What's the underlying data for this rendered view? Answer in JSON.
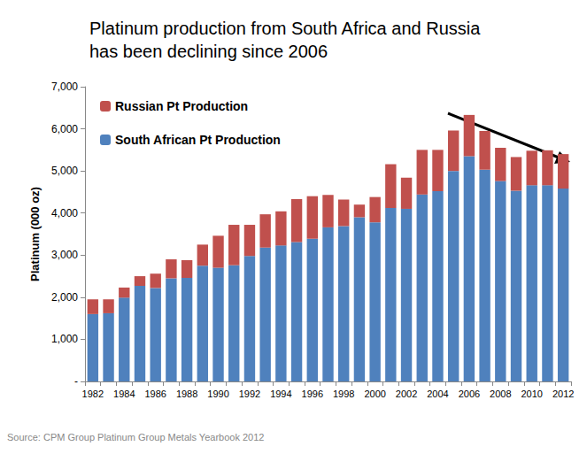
{
  "chart_data": {
    "type": "bar",
    "stacked": true,
    "title": "Platinum production from South Africa and Russia\nhas been declining since 2006",
    "y_label": "Platinum (000 oz)",
    "annotation": "Source: CPM Group Platinum Group Metals Yearbook 2012",
    "legend": "upper left",
    "grid": false,
    "categories": [
      "1982",
      null,
      "1984",
      null,
      "1986",
      null,
      "1988",
      null,
      "1990",
      null,
      "1992",
      null,
      "1994",
      null,
      "1996",
      null,
      "1998",
      null,
      "2000",
      null,
      "2002",
      null,
      "2004",
      null,
      "2006",
      null,
      "2008",
      null,
      "2010",
      null,
      "2012"
    ],
    "series": [
      {
        "name": "South African Pt Production",
        "color": "#4f81bd",
        "values": [
          1600,
          1620,
          1990,
          2270,
          2220,
          2450,
          2460,
          2750,
          2700,
          2760,
          2980,
          3180,
          3230,
          3310,
          3390,
          3660,
          3690,
          3900,
          3780,
          4120,
          4100,
          4440,
          4520,
          5000,
          5350,
          5030,
          4760,
          4530,
          4660,
          4660,
          4580
        ]
      },
      {
        "name": "Russian Pt Production",
        "color": "#c0504d",
        "values": [
          350,
          330,
          240,
          230,
          340,
          450,
          420,
          500,
          760,
          960,
          740,
          790,
          810,
          1020,
          1010,
          770,
          630,
          300,
          600,
          1040,
          740,
          1060,
          980,
          960,
          980,
          920,
          790,
          800,
          820,
          830,
          820
        ]
      }
    ],
    "ylim": [
      0,
      7000
    ],
    "yticks": [
      {
        "value": 0,
        "label": "-"
      },
      {
        "value": 1000,
        "label": "1,000"
      },
      {
        "value": 2000,
        "label": "2,000"
      },
      {
        "value": 3000,
        "label": "3,000"
      },
      {
        "value": 4000,
        "label": "4,000"
      },
      {
        "value": 5000,
        "label": "5,000"
      },
      {
        "value": 6000,
        "label": "6,000"
      },
      {
        "value": 7000,
        "label": "7,000"
      }
    ]
  }
}
